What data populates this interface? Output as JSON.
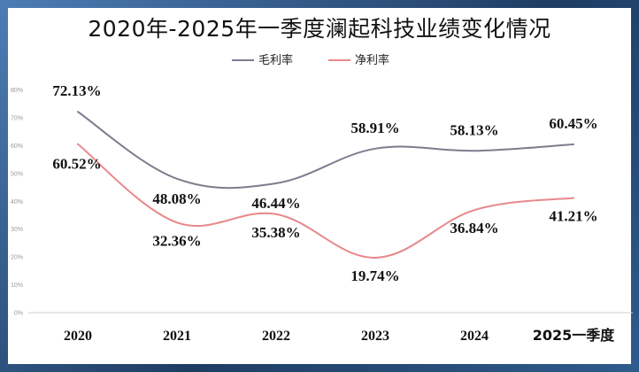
{
  "chart_data": {
    "type": "line",
    "title": "2020年-2025年一季度澜起科技业绩变化情况",
    "categories": [
      "2020",
      "2021",
      "2022",
      "2023",
      "2024",
      "2025一季度"
    ],
    "series": [
      {
        "name": "毛利率",
        "color": "#7b7d8e",
        "values": [
          72.13,
          48.08,
          46.44,
          58.91,
          58.13,
          60.45
        ],
        "labels": [
          "72.13%",
          "48.08%",
          "46.44%",
          "58.91%",
          "58.13%",
          "60.45%"
        ]
      },
      {
        "name": "净利率",
        "color": "#e8888a",
        "values": [
          60.52,
          32.36,
          35.38,
          19.74,
          36.84,
          41.21
        ],
        "labels": [
          "60.52%",
          "32.36%",
          "35.38%",
          "19.74%",
          "36.84%",
          "41.21%"
        ]
      }
    ],
    "yticks": [
      "0%",
      "10%",
      "20%",
      "30%",
      "40%",
      "50%",
      "60%",
      "70%",
      "80%"
    ],
    "ylim": [
      0,
      80
    ],
    "legend_position": "top-center",
    "grid": false,
    "xlabel": "",
    "ylabel": ""
  }
}
